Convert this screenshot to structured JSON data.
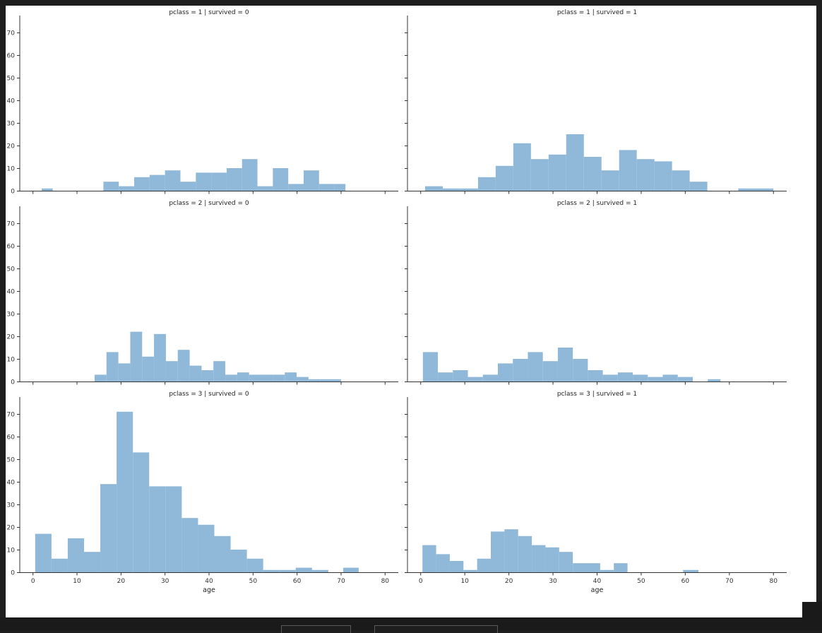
{
  "chart_data": {
    "type": "facet-histogram",
    "xlabel": "age",
    "xlim": [
      -3,
      83
    ],
    "ylim": [
      0,
      75
    ],
    "xticks": [
      0,
      10,
      20,
      30,
      40,
      50,
      60,
      70,
      80
    ],
    "yticks": [
      0,
      10,
      20,
      30,
      40,
      50,
      60,
      70
    ],
    "color": "#8fb8d9",
    "grid": false,
    "panels": [
      {
        "title": "pclass = 1 | survived = 0",
        "row": 0,
        "col": 0,
        "bins": [
          [
            2,
            4.5,
            1
          ],
          [
            16,
            19.5,
            4
          ],
          [
            19.5,
            23,
            2
          ],
          [
            23,
            26.5,
            6
          ],
          [
            26.5,
            30,
            7
          ],
          [
            30,
            33.5,
            9
          ],
          [
            33.5,
            37,
            4
          ],
          [
            37,
            40.5,
            8
          ],
          [
            40.5,
            44,
            8
          ],
          [
            44,
            47.5,
            10
          ],
          [
            47.5,
            51,
            14
          ],
          [
            51,
            54.5,
            2
          ],
          [
            54.5,
            58,
            10
          ],
          [
            58,
            61.5,
            3
          ],
          [
            61.5,
            65,
            9
          ],
          [
            65,
            68.5,
            3
          ],
          [
            68.5,
            71,
            3
          ]
        ]
      },
      {
        "title": "pclass = 1 | survived = 1",
        "row": 0,
        "col": 1,
        "bins": [
          [
            1,
            5,
            2
          ],
          [
            5,
            9,
            1
          ],
          [
            9,
            13,
            1
          ],
          [
            13,
            17,
            6
          ],
          [
            17,
            21,
            11
          ],
          [
            21,
            25,
            21
          ],
          [
            25,
            29,
            14
          ],
          [
            29,
            33,
            16
          ],
          [
            33,
            37,
            25
          ],
          [
            37,
            41,
            15
          ],
          [
            41,
            45,
            9
          ],
          [
            45,
            49,
            18
          ],
          [
            49,
            53,
            14
          ],
          [
            53,
            57,
            13
          ],
          [
            57,
            61,
            9
          ],
          [
            61,
            65,
            4
          ],
          [
            72,
            80,
            1
          ]
        ]
      },
      {
        "title": "pclass = 2 | survived = 0",
        "row": 1,
        "col": 0,
        "bins": [
          [
            14,
            16.7,
            3
          ],
          [
            16.7,
            19.4,
            13
          ],
          [
            19.4,
            22.1,
            8
          ],
          [
            22.1,
            24.8,
            22
          ],
          [
            24.8,
            27.5,
            11
          ],
          [
            27.5,
            30.2,
            21
          ],
          [
            30.2,
            32.9,
            9
          ],
          [
            32.9,
            35.6,
            14
          ],
          [
            35.6,
            38.3,
            7
          ],
          [
            38.3,
            41,
            5
          ],
          [
            41,
            43.7,
            9
          ],
          [
            43.7,
            46.4,
            3
          ],
          [
            46.4,
            49.1,
            4
          ],
          [
            49.1,
            51.8,
            3
          ],
          [
            51.8,
            54.5,
            3
          ],
          [
            54.5,
            57.2,
            3
          ],
          [
            57.2,
            59.9,
            4
          ],
          [
            59.9,
            62.6,
            2
          ],
          [
            62.6,
            65.3,
            1
          ],
          [
            65.3,
            70,
            1
          ]
        ]
      },
      {
        "title": "pclass = 2 | survived = 1",
        "row": 1,
        "col": 1,
        "bins": [
          [
            0.5,
            3.9,
            13
          ],
          [
            3.9,
            7.3,
            4
          ],
          [
            7.3,
            10.7,
            5
          ],
          [
            10.7,
            14.1,
            2
          ],
          [
            14.1,
            17.5,
            3
          ],
          [
            17.5,
            20.9,
            8
          ],
          [
            20.9,
            24.3,
            10
          ],
          [
            24.3,
            27.7,
            13
          ],
          [
            27.7,
            31.1,
            9
          ],
          [
            31.1,
            34.5,
            15
          ],
          [
            34.5,
            37.9,
            10
          ],
          [
            37.9,
            41.3,
            5
          ],
          [
            41.3,
            44.7,
            3
          ],
          [
            44.7,
            48.1,
            4
          ],
          [
            48.1,
            51.5,
            3
          ],
          [
            51.5,
            54.9,
            2
          ],
          [
            54.9,
            58.3,
            3
          ],
          [
            58.3,
            61.7,
            2
          ],
          [
            61.7,
            65.1,
            0
          ],
          [
            65.1,
            68,
            1
          ]
        ]
      },
      {
        "title": "pclass = 3 | survived = 0",
        "row": 2,
        "col": 0,
        "bins": [
          [
            0.5,
            4.2,
            17
          ],
          [
            4.2,
            7.9,
            6
          ],
          [
            7.9,
            11.6,
            15
          ],
          [
            11.6,
            15.3,
            9
          ],
          [
            15.3,
            19,
            39
          ],
          [
            19,
            22.7,
            71
          ],
          [
            22.7,
            26.4,
            53
          ],
          [
            26.4,
            30.1,
            38
          ],
          [
            30.1,
            33.8,
            38
          ],
          [
            33.8,
            37.5,
            24
          ],
          [
            37.5,
            41.2,
            21
          ],
          [
            41.2,
            44.9,
            16
          ],
          [
            44.9,
            48.6,
            10
          ],
          [
            48.6,
            52.3,
            6
          ],
          [
            52.3,
            56,
            1
          ],
          [
            56,
            59.7,
            1
          ],
          [
            59.7,
            63.4,
            2
          ],
          [
            63.4,
            67.1,
            1
          ],
          [
            70.5,
            74,
            2
          ]
        ]
      },
      {
        "title": "pclass = 3 | survived = 1",
        "row": 2,
        "col": 1,
        "bins": [
          [
            0.4,
            3.5,
            12
          ],
          [
            3.5,
            6.6,
            8
          ],
          [
            6.6,
            9.7,
            5
          ],
          [
            9.7,
            12.8,
            1
          ],
          [
            12.8,
            15.9,
            6
          ],
          [
            15.9,
            19,
            18
          ],
          [
            19,
            22.1,
            19
          ],
          [
            22.1,
            25.2,
            16
          ],
          [
            25.2,
            28.3,
            12
          ],
          [
            28.3,
            31.4,
            11
          ],
          [
            31.4,
            34.5,
            9
          ],
          [
            34.5,
            37.6,
            4
          ],
          [
            37.6,
            40.7,
            4
          ],
          [
            40.7,
            43.8,
            1
          ],
          [
            43.8,
            46.9,
            4
          ],
          [
            59.5,
            63,
            1
          ]
        ]
      }
    ]
  }
}
